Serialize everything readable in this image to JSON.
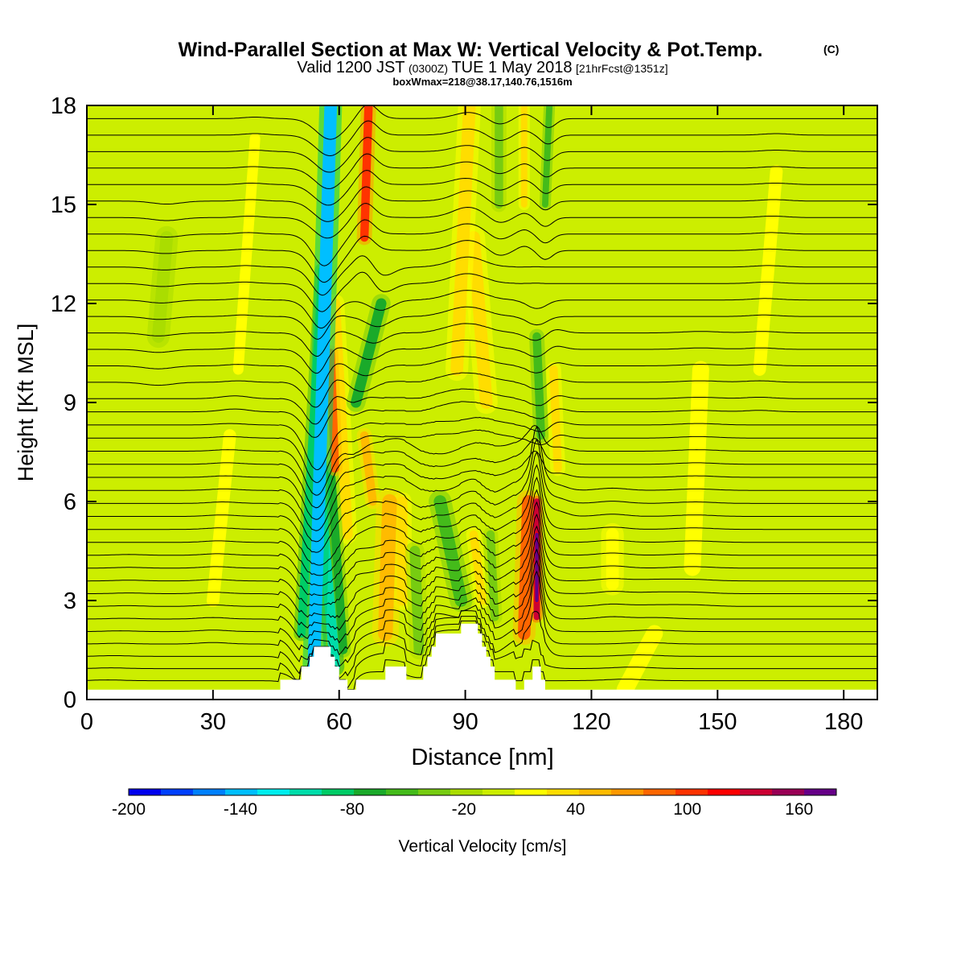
{
  "chart_data": {
    "type": "heatmap",
    "title": "Wind-Parallel Section at Max W: Vertical Velocity & Pot.Temp.",
    "title_mark": "(C)",
    "subtitle": {
      "prefix": "Valid 1200 JST",
      "utc": "(0300Z)",
      "date": "TUE 1 May 2018",
      "forecast": "[21hrFcst@1351z]"
    },
    "box_info": "boxWmax=218@38.17,140.76,1516m",
    "xlabel": "Distance [nm]",
    "ylabel": "Height [Kft MSL]",
    "xlim": [
      0,
      188
    ],
    "ylim": [
      0,
      18
    ],
    "x_ticks": [
      0,
      30,
      60,
      90,
      120,
      150,
      180
    ],
    "y_ticks": [
      0,
      3,
      6,
      9,
      12,
      15,
      18
    ],
    "grid": false,
    "colorbar": {
      "label": "Vertical Velocity [cm/s]",
      "range": [
        -200,
        180
      ],
      "tick_labels": [
        -200,
        -140,
        -80,
        -20,
        40,
        100,
        160
      ],
      "colors": [
        "#0000ee",
        "#0040ff",
        "#0080ff",
        "#00bfff",
        "#00eeee",
        "#00ddaa",
        "#00cc66",
        "#1aaa2a",
        "#44bb1a",
        "#77cc11",
        "#aadd00",
        "#ccee00",
        "#ffff00",
        "#ffdd00",
        "#ffbb00",
        "#ff9900",
        "#ff6600",
        "#ff3300",
        "#ff0000",
        "#cc0033",
        "#990055",
        "#660088"
      ]
    },
    "background_value": -5,
    "velocity_features": [
      {
        "x_start": 54,
        "y_start": 1.0,
        "x_end": 58,
        "y_end": 18,
        "width_nm": 3.0,
        "value": -140
      },
      {
        "x_start": 51,
        "y_start": 2.0,
        "x_end": 56,
        "y_end": 13,
        "width_nm": 2.0,
        "value": -80
      },
      {
        "x_start": 59,
        "y_start": 1.0,
        "x_end": 55,
        "y_end": 7,
        "width_nm": 2.5,
        "value": -110
      },
      {
        "x_start": 61,
        "y_start": 1.5,
        "x_end": 58,
        "y_end": 7,
        "width_nm": 2.0,
        "value": -70
      },
      {
        "x_start": 59,
        "y_start": 7,
        "x_end": 58,
        "y_end": 10.5,
        "width_nm": 2.0,
        "value": 80
      },
      {
        "x_start": 62,
        "y_start": 5,
        "x_end": 59,
        "y_end": 12,
        "width_nm": 2.5,
        "value": 40
      },
      {
        "x_start": 64,
        "y_start": 9,
        "x_end": 70,
        "y_end": 12,
        "width_nm": 2.5,
        "value": -70
      },
      {
        "x_start": 66,
        "y_start": 14,
        "x_end": 67,
        "y_end": 18,
        "width_nm": 2.0,
        "value": 100
      },
      {
        "x_start": 68,
        "y_start": 6,
        "x_end": 66,
        "y_end": 8,
        "width_nm": 2.0,
        "value": 50
      },
      {
        "x_start": 71,
        "y_start": 2,
        "x_end": 72,
        "y_end": 6,
        "width_nm": 3.5,
        "value": 50
      },
      {
        "x_start": 75,
        "y_start": 3,
        "x_end": 75,
        "y_end": 6,
        "width_nm": 2.5,
        "value": 30
      },
      {
        "x_start": 79,
        "y_start": 1.5,
        "x_end": 78,
        "y_end": 4.5,
        "width_nm": 2.5,
        "value": -40
      },
      {
        "x_start": 89,
        "y_start": 3,
        "x_end": 84,
        "y_end": 6,
        "width_nm": 3.0,
        "value": -50
      },
      {
        "x_start": 94,
        "y_start": 3,
        "x_end": 92,
        "y_end": 5,
        "width_nm": 2.0,
        "value": 30
      },
      {
        "x_start": 88,
        "y_start": 10,
        "x_end": 91,
        "y_end": 18,
        "width_nm": 3.0,
        "value": 40
      },
      {
        "x_start": 95,
        "y_start": 9,
        "x_end": 92,
        "y_end": 14,
        "width_nm": 3.0,
        "value": 30
      },
      {
        "x_start": 97,
        "y_start": 2.5,
        "x_end": 96,
        "y_end": 5,
        "width_nm": 2.0,
        "value": -30
      },
      {
        "x_start": 98,
        "y_start": 15,
        "x_end": 98,
        "y_end": 18,
        "width_nm": 2.0,
        "value": -40
      },
      {
        "x_start": 104,
        "y_start": 2,
        "x_end": 105,
        "y_end": 6,
        "width_nm": 3.0,
        "value": 80
      },
      {
        "x_start": 107,
        "y_start": 2.5,
        "x_end": 107,
        "y_end": 6,
        "width_nm": 1.5,
        "value": 140
      },
      {
        "x_start": 107,
        "y_start": 3,
        "x_end": 107,
        "y_end": 5,
        "width_nm": 0.8,
        "value": 200
      },
      {
        "x_start": 108,
        "y_start": 8,
        "x_end": 107,
        "y_end": 11,
        "width_nm": 2.0,
        "value": -60
      },
      {
        "x_start": 109,
        "y_start": 15,
        "x_end": 110,
        "y_end": 18,
        "width_nm": 1.5,
        "value": -60
      },
      {
        "x_start": 104,
        "y_start": 15,
        "x_end": 104,
        "y_end": 18,
        "width_nm": 1.5,
        "value": 30
      },
      {
        "x_start": 112,
        "y_start": 7,
        "x_end": 111,
        "y_end": 10,
        "width_nm": 2.0,
        "value": 30
      },
      {
        "x_start": 125,
        "y_start": 3.5,
        "x_end": 125,
        "y_end": 5,
        "width_nm": 3.0,
        "value": 15
      },
      {
        "x_start": 17,
        "y_start": 11,
        "x_end": 19,
        "y_end": 14,
        "width_nm": 3.0,
        "value": -20
      },
      {
        "x_start": 36,
        "y_start": 10,
        "x_end": 40,
        "y_end": 17,
        "width_nm": 2.5,
        "value": 10
      },
      {
        "x_start": 30,
        "y_start": 3,
        "x_end": 34,
        "y_end": 8,
        "width_nm": 3.0,
        "value": 10
      },
      {
        "x_start": 144,
        "y_start": 4,
        "x_end": 146,
        "y_end": 10,
        "width_nm": 4.0,
        "value": 10
      },
      {
        "x_start": 160,
        "y_start": 10,
        "x_end": 164,
        "y_end": 16,
        "width_nm": 3.0,
        "value": 10
      },
      {
        "x_start": 5,
        "y_start": 0.3,
        "x_end": 10,
        "y_end": 3,
        "width_nm": 3.0,
        "value": 5
      },
      {
        "x_start": 128,
        "y_start": 0.3,
        "x_end": 135,
        "y_end": 2,
        "width_nm": 4.0,
        "value": 10
      }
    ],
    "isentrope_heights": [
      0.3,
      0.7,
      1.1,
      1.5,
      1.9,
      2.3,
      2.7,
      3.1,
      3.5,
      3.9,
      4.3,
      4.7,
      5.1,
      5.5,
      5.9,
      6.3,
      6.7,
      7.1,
      7.5,
      7.9,
      8.3,
      8.7,
      9.1,
      9.6,
      10.1,
      10.6,
      11.1,
      11.6,
      12.1,
      12.6,
      13.1,
      13.6,
      14.1,
      14.6,
      15.1,
      15.6,
      16.1,
      16.6,
      17.1,
      17.6
    ],
    "terrain": {
      "x": [
        0,
        5,
        10,
        20,
        30,
        40,
        45,
        46,
        50,
        51,
        53,
        54,
        57,
        58,
        59,
        60,
        61,
        62,
        63,
        64,
        65,
        70,
        71,
        75,
        76,
        80,
        81,
        82,
        83,
        85,
        86,
        87,
        88,
        89,
        90,
        92,
        93,
        94,
        95,
        96,
        97,
        98,
        99,
        100,
        101,
        102,
        103,
        104,
        105,
        106,
        107,
        108,
        109,
        110,
        115,
        120,
        130,
        150,
        188
      ],
      "height": [
        0.3,
        0.3,
        0.3,
        0.3,
        0.3,
        0.3,
        0.3,
        0.6,
        0.6,
        1.0,
        1.3,
        1.6,
        1.6,
        1.3,
        1.0,
        0.6,
        0.6,
        0.3,
        0.3,
        0.6,
        0.6,
        0.6,
        1.0,
        1.0,
        0.6,
        1.0,
        1.3,
        1.6,
        2.0,
        2.0,
        2.0,
        2.0,
        2.0,
        2.3,
        2.3,
        2.3,
        2.0,
        1.6,
        1.3,
        1.0,
        0.6,
        0.6,
        0.6,
        0.6,
        0.6,
        0.3,
        0.3,
        0.6,
        0.6,
        1.0,
        1.0,
        0.6,
        0.3,
        0.3,
        0.3,
        0.3,
        0.3,
        0.3,
        0.3
      ]
    }
  }
}
